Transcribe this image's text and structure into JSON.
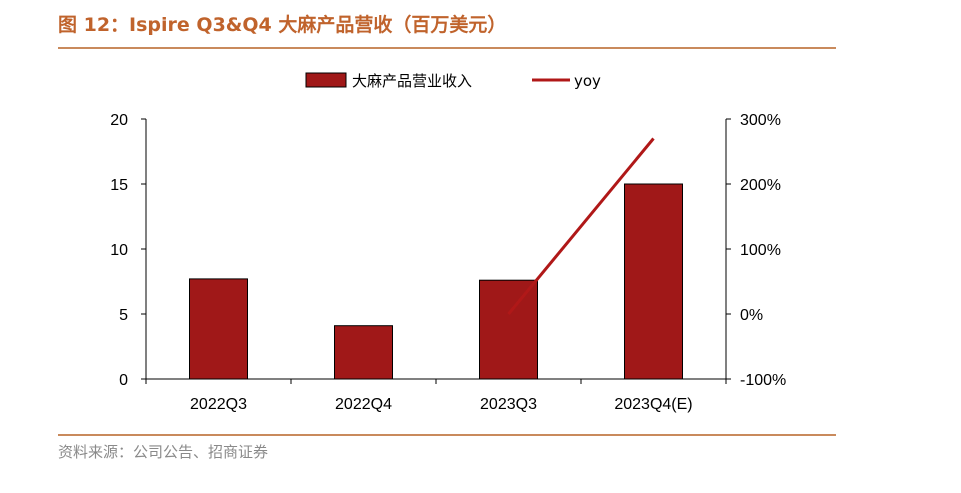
{
  "header": {
    "title": "图 12：Ispire Q3&Q4 大麻产品营收（百万美元）"
  },
  "footer": {
    "source": "资料来源：公司公告、招商证券"
  },
  "colors": {
    "bar": "#a01818",
    "line": "#b01818",
    "title": "#c0632c",
    "rule": "#c98a5c"
  },
  "chart_data": {
    "type": "bar",
    "categories": [
      "2022Q3",
      "2022Q4",
      "2023Q3",
      "2023Q4(E)"
    ],
    "series": [
      {
        "name": "大麻产品营业收入",
        "type": "bar",
        "axis": "left",
        "values": [
          7.7,
          4.1,
          7.6,
          15.0
        ]
      },
      {
        "name": "yoy",
        "type": "line",
        "axis": "right",
        "values": [
          null,
          null,
          0,
          270
        ]
      }
    ],
    "y_left": {
      "ylim": [
        0,
        20
      ],
      "ticks": [
        0,
        5,
        10,
        15,
        20
      ],
      "tick_labels": [
        "0",
        "5",
        "10",
        "15",
        "20"
      ]
    },
    "y_right": {
      "ylim": [
        -100,
        300
      ],
      "ticks": [
        -100,
        0,
        100,
        200,
        300
      ],
      "tick_labels": [
        "-100%",
        "0%",
        "100%",
        "200%",
        "300%"
      ]
    },
    "legend": "top-center",
    "grid": false
  }
}
